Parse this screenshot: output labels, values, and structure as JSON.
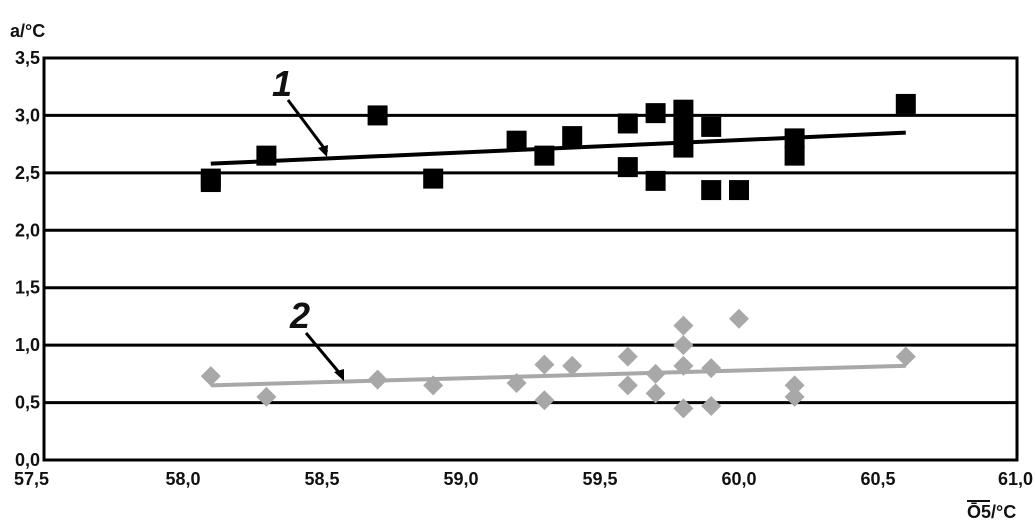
{
  "chart_data": {
    "type": "scatter",
    "ylabel": "a/°C",
    "xlabel": "Ō5/°C",
    "xlim": [
      57.5,
      61.0
    ],
    "ylim": [
      0.0,
      3.5
    ],
    "x_ticks": [
      "57,5",
      "58,0",
      "58,5",
      "59,0",
      "59,5",
      "60,0",
      "60,5",
      "61,0"
    ],
    "y_ticks": [
      "0,0",
      "0,5",
      "1,0",
      "1,5",
      "2,0",
      "2,5",
      "3,0",
      "3,5"
    ],
    "grid": "horizontal",
    "annotations": [
      "1",
      "2"
    ],
    "series": [
      {
        "marker": "square",
        "color": "#000000",
        "points": [
          [
            58.1,
            2.45
          ],
          [
            58.1,
            2.42
          ],
          [
            58.3,
            2.65
          ],
          [
            58.7,
            3.0
          ],
          [
            58.9,
            2.45
          ],
          [
            59.2,
            2.78
          ],
          [
            59.3,
            2.65
          ],
          [
            59.4,
            2.82
          ],
          [
            59.6,
            2.93
          ],
          [
            59.6,
            2.55
          ],
          [
            59.7,
            3.02
          ],
          [
            59.7,
            2.43
          ],
          [
            59.8,
            3.05
          ],
          [
            59.8,
            2.88
          ],
          [
            59.8,
            2.72
          ],
          [
            59.9,
            2.9
          ],
          [
            59.9,
            2.35
          ],
          [
            60.0,
            2.35
          ],
          [
            60.2,
            2.8
          ],
          [
            60.2,
            2.65
          ],
          [
            60.6,
            3.1
          ]
        ],
        "trend": [
          [
            58.1,
            2.58
          ],
          [
            60.6,
            2.85
          ]
        ]
      },
      {
        "marker": "diamond",
        "color": "#a8a8a8",
        "points": [
          [
            58.1,
            0.73
          ],
          [
            58.3,
            0.55
          ],
          [
            58.7,
            0.7
          ],
          [
            58.9,
            0.65
          ],
          [
            59.2,
            0.67
          ],
          [
            59.3,
            0.83
          ],
          [
            59.3,
            0.52
          ],
          [
            59.4,
            0.82
          ],
          [
            59.6,
            0.9
          ],
          [
            59.6,
            0.65
          ],
          [
            59.7,
            0.75
          ],
          [
            59.7,
            0.58
          ],
          [
            59.8,
            1.17
          ],
          [
            59.8,
            1.0
          ],
          [
            59.8,
            0.82
          ],
          [
            59.8,
            0.45
          ],
          [
            59.9,
            0.8
          ],
          [
            59.9,
            0.47
          ],
          [
            60.0,
            1.23
          ],
          [
            60.2,
            0.65
          ],
          [
            60.2,
            0.55
          ],
          [
            60.6,
            0.9
          ]
        ],
        "trend": [
          [
            58.1,
            0.65
          ],
          [
            60.6,
            0.82
          ]
        ]
      }
    ]
  }
}
